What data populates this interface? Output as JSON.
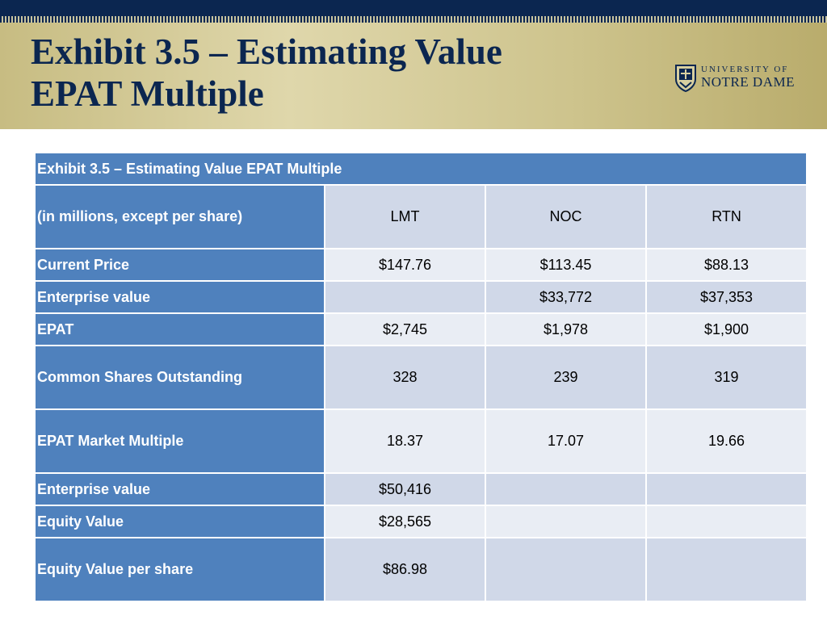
{
  "slide": {
    "title_line1": "Exhibit 3.5 – Estimating Value",
    "title_line2": "EPAT Multiple"
  },
  "logo": {
    "line1": "UNIVERSITY OF",
    "line2": "NOTRE DAME",
    "icon": "shield-icon"
  },
  "table": {
    "caption": "Exhibit 3.5 – Estimating Value EPAT Multiple",
    "columns": [
      "(in millions, except per share)",
      "LMT",
      "NOC",
      "RTN"
    ],
    "rows": [
      {
        "label": "Current Price",
        "values": [
          "$147.76",
          "$113.45",
          "$88.13"
        ]
      },
      {
        "label": "Enterprise value",
        "values": [
          "",
          "$33,772",
          "$37,353"
        ]
      },
      {
        "label": "EPAT",
        "values": [
          "$2,745",
          "$1,978",
          "$1,900"
        ]
      },
      {
        "label": "Common Shares Outstanding",
        "values": [
          "328",
          "239",
          "319"
        ]
      },
      {
        "label": "EPAT Market Multiple",
        "values": [
          "18.37",
          "17.07",
          "19.66"
        ]
      },
      {
        "label": "Enterprise value",
        "values": [
          "$50,416",
          "",
          ""
        ]
      },
      {
        "label": "Equity Value",
        "values": [
          "$28,565",
          "",
          ""
        ]
      },
      {
        "label": "Equity Value per share",
        "values": [
          "$86.98",
          "",
          ""
        ]
      }
    ]
  },
  "colors": {
    "navy": "#0b2650",
    "header_blue": "#4f81bd",
    "row_dark": "#d0d8e8",
    "row_light": "#e9edf4",
    "banner_gold": "#d4ca98"
  }
}
